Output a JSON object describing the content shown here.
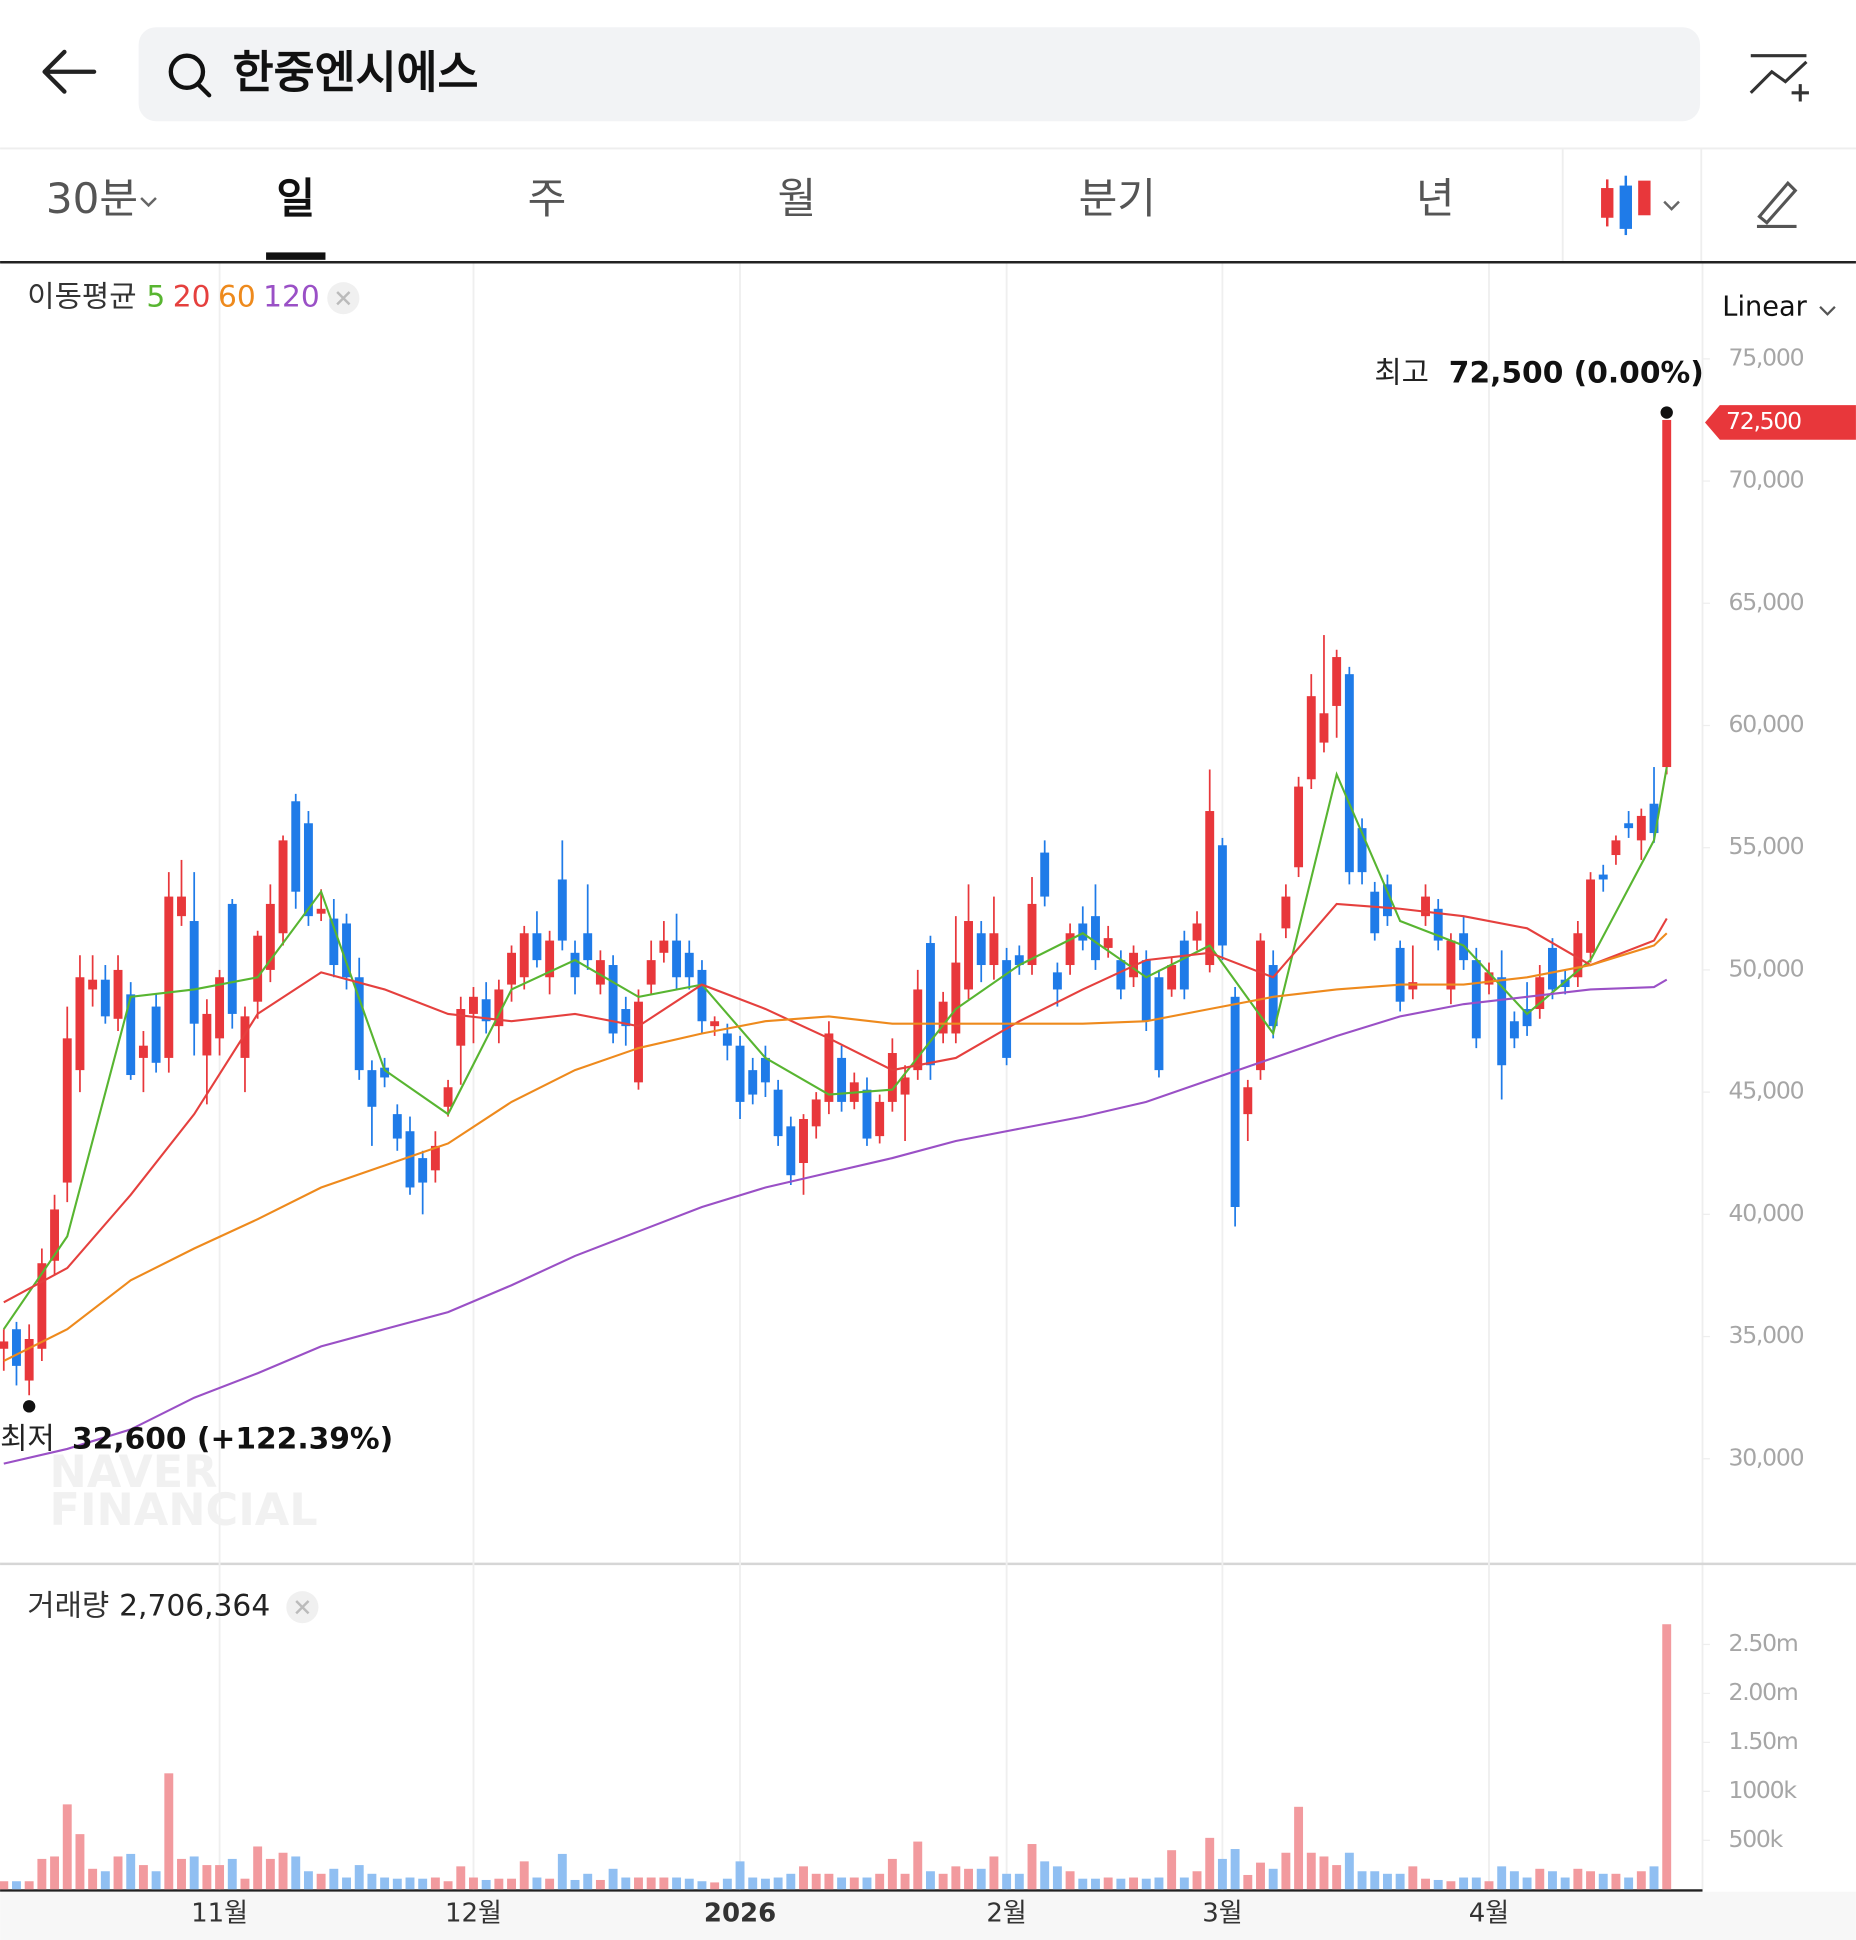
{
  "header": {
    "search_text": "한중엔시에스"
  },
  "tabs": [
    "30분",
    "일",
    "주",
    "월",
    "분기",
    "년"
  ],
  "chart_data": [
    {
      "type": "candlestick",
      "ma_title": "이동평균",
      "scale": "Linear",
      "up_color": "#e8373b",
      "down_color": "#1f7be8",
      "ylim": [
        25750,
        78900
      ],
      "yticks": [
        {
          "value": 30000,
          "label": "30,000"
        },
        {
          "value": 35000,
          "label": "35,000"
        },
        {
          "value": 40000,
          "label": "40,000"
        },
        {
          "value": 45000,
          "label": "45,000"
        },
        {
          "value": 50000,
          "label": "50,000"
        },
        {
          "value": 55000,
          "label": "55,000"
        },
        {
          "value": 60000,
          "label": "60,000"
        },
        {
          "value": 65000,
          "label": "65,000"
        },
        {
          "value": 70000,
          "label": "70,000"
        },
        {
          "value": 75000,
          "label": "75,000"
        }
      ],
      "max_label": "최고",
      "max_text": "72,500 (0.00%)",
      "min_label": "최저",
      "min_text": "32,600 (+122.39%)",
      "price_tag": "72,500",
      "watermark": [
        "NAVER",
        "FINANCIAL"
      ],
      "categories": [
        null,
        null,
        null,
        null,
        null,
        null,
        null,
        null,
        null,
        null,
        null,
        null,
        null,
        null,
        null,
        null,
        null,
        "11월",
        null,
        null,
        null,
        null,
        null,
        null,
        null,
        null,
        null,
        null,
        null,
        null,
        null,
        null,
        null,
        null,
        null,
        null,
        null,
        "12월",
        null,
        null,
        null,
        null,
        null,
        null,
        null,
        null,
        null,
        null,
        null,
        null,
        null,
        null,
        null,
        null,
        null,
        null,
        null,
        null,
        "2026",
        null,
        null,
        null,
        null,
        null,
        null,
        null,
        null,
        null,
        null,
        null,
        null,
        null,
        null,
        null,
        null,
        null,
        null,
        null,
        null,
        "2월",
        null,
        null,
        null,
        null,
        null,
        null,
        null,
        null,
        null,
        null,
        null,
        null,
        null,
        null,
        null,
        null,
        "3월",
        null,
        null,
        null,
        null,
        null,
        null,
        null,
        null,
        null,
        null,
        null,
        null,
        null,
        null,
        null,
        null,
        null,
        null,
        null,
        null,
        "4월",
        null,
        null,
        null,
        null,
        null,
        null,
        null,
        null,
        null,
        null,
        null,
        null,
        null,
        null
      ],
      "open": [
        34500,
        35300,
        33200,
        34500,
        38100,
        41300,
        45900,
        49200,
        49600,
        48000,
        49000,
        46400,
        48500,
        46400,
        52200,
        52000,
        46500,
        47200,
        52700,
        46400,
        48700,
        50000,
        51500,
        56900,
        56000,
        52300,
        52100,
        51900,
        49700,
        45900,
        46000,
        44100,
        43400,
        42300,
        41800,
        44400,
        46900,
        48200,
        48800,
        47700,
        49400,
        49700,
        51500,
        49700,
        53700,
        50700,
        51500,
        49400,
        50200,
        48400,
        45400,
        49400,
        50700,
        51200,
        50700,
        50000,
        47700,
        47400,
        46900,
        45900,
        46400,
        45100,
        43600,
        42100,
        43600,
        44600,
        46400,
        44600,
        45100,
        43200,
        44600,
        44900,
        45900,
        51100,
        47400,
        47400,
        49200,
        51500,
        50200,
        50400,
        50600,
        50200,
        54800,
        49900,
        50200,
        51900,
        52200,
        50900,
        50400,
        49700,
        50400,
        49700,
        49200,
        51200,
        51200,
        50200,
        55100,
        48900,
        44100,
        45900,
        50200,
        51700,
        54200,
        57800,
        59300,
        60800,
        62100,
        55800,
        53200,
        53500,
        50900,
        49200,
        52200,
        52500,
        49200,
        51500,
        50400,
        49400,
        49700,
        47900,
        48400,
        48400,
        50900,
        49600,
        49700,
        50700,
        53900,
        54700,
        56000,
        55300,
        56800,
        58300
      ],
      "high": [
        35300,
        35600,
        35500,
        38600,
        40800,
        48500,
        50600,
        50600,
        50200,
        50600,
        49500,
        47500,
        49000,
        54000,
        54500,
        54000,
        48800,
        50000,
        52900,
        48500,
        51600,
        53500,
        55500,
        57200,
        56500,
        53300,
        52900,
        52300,
        50500,
        46300,
        46400,
        44500,
        44000,
        42600,
        43400,
        45500,
        48900,
        49300,
        49500,
        49600,
        51000,
        51800,
        52400,
        51600,
        55300,
        51200,
        53500,
        50800,
        50600,
        48900,
        49200,
        51200,
        52000,
        52300,
        51200,
        50400,
        48100,
        47800,
        47300,
        46400,
        46900,
        45500,
        44000,
        44100,
        45000,
        47900,
        46900,
        45800,
        45600,
        44900,
        47200,
        46100,
        50000,
        51400,
        49100,
        52200,
        53500,
        52000,
        53000,
        50900,
        51000,
        53800,
        55300,
        50300,
        51900,
        52600,
        53500,
        51800,
        50800,
        51000,
        50800,
        50000,
        50500,
        51600,
        52400,
        58200,
        55400,
        49300,
        45500,
        51500,
        50800,
        53500,
        57900,
        62100,
        63700,
        63100,
        62400,
        56200,
        53600,
        53900,
        51200,
        51000,
        53500,
        52900,
        51500,
        52200,
        50900,
        50300,
        50800,
        48300,
        49500,
        50200,
        51300,
        50000,
        52000,
        54000,
        54300,
        55500,
        56500,
        56600,
        58300,
        72500
      ],
      "low": [
        33600,
        33000,
        32600,
        34000,
        37500,
        40500,
        45000,
        48500,
        47800,
        47500,
        45500,
        45000,
        45800,
        45800,
        51800,
        46500,
        44500,
        46500,
        47600,
        45000,
        48000,
        49500,
        51000,
        52500,
        51800,
        52000,
        49700,
        49200,
        45500,
        42800,
        45200,
        42600,
        40800,
        40000,
        41300,
        44000,
        45300,
        47000,
        47400,
        47000,
        48700,
        49200,
        50100,
        49000,
        50800,
        49000,
        50000,
        49000,
        47000,
        46900,
        45100,
        49000,
        50300,
        49200,
        49200,
        47400,
        47300,
        46300,
        43900,
        44500,
        44800,
        42800,
        41200,
        40800,
        43100,
        44100,
        44200,
        44300,
        42800,
        42900,
        44200,
        43000,
        45500,
        45500,
        47000,
        47000,
        48800,
        49500,
        49600,
        46100,
        49800,
        49800,
        52600,
        48500,
        49800,
        50800,
        50000,
        50500,
        48800,
        49300,
        47500,
        45600,
        48900,
        48800,
        50800,
        49900,
        50400,
        39500,
        43000,
        45500,
        47200,
        51300,
        53800,
        57400,
        58900,
        59500,
        53500,
        53500,
        51200,
        51800,
        48300,
        48800,
        51800,
        50800,
        48600,
        50000,
        46800,
        49000,
        44700,
        46800,
        47300,
        48000,
        48800,
        49000,
        49300,
        50300,
        53200,
        54300,
        55400,
        54500,
        55200,
        58000
      ],
      "close": [
        34800,
        33800,
        34900,
        38000,
        40200,
        47200,
        49700,
        49600,
        48100,
        50000,
        45700,
        46900,
        46200,
        53000,
        53000,
        47800,
        48200,
        49700,
        48200,
        48100,
        51400,
        52700,
        55300,
        53200,
        52200,
        52500,
        50200,
        49700,
        45900,
        44400,
        45600,
        43100,
        41100,
        41300,
        42800,
        45200,
        48400,
        48900,
        47900,
        49200,
        50700,
        51500,
        50400,
        51200,
        51200,
        49700,
        50400,
        50400,
        47400,
        47700,
        48700,
        50400,
        51200,
        49700,
        49700,
        47900,
        47900,
        46900,
        44600,
        44900,
        45400,
        43200,
        41600,
        43900,
        44700,
        47400,
        44600,
        45400,
        43100,
        44600,
        46600,
        45600,
        49200,
        46100,
        48700,
        50300,
        52000,
        50200,
        51500,
        46400,
        50200,
        52700,
        53000,
        49200,
        51500,
        51200,
        50400,
        51300,
        49200,
        50700,
        47900,
        45900,
        50200,
        49200,
        51900,
        56500,
        51000,
        40300,
        45200,
        51200,
        47700,
        53000,
        57500,
        61200,
        60500,
        62800,
        54000,
        54000,
        51500,
        52200,
        48700,
        49500,
        53000,
        51200,
        51200,
        50400,
        47200,
        49900,
        46100,
        47200,
        47700,
        49700,
        49200,
        49300,
        51500,
        53700,
        53700,
        55300,
        55800,
        56300,
        55600,
        72500
      ],
      "moving_averages": [
        {
          "name": "5",
          "color": "#58b531",
          "x": [
            0,
            5,
            10,
            15,
            20,
            25,
            30,
            35,
            40,
            45,
            50,
            55,
            60,
            65,
            70,
            75,
            80,
            85,
            90,
            95,
            100,
            105,
            110,
            115,
            120,
            125,
            130,
            131
          ],
          "values": [
            35300,
            39100,
            48900,
            49200,
            49700,
            53200,
            45900,
            44100,
            49200,
            50400,
            48900,
            49400,
            46400,
            44900,
            45100,
            48400,
            50200,
            51500,
            49700,
            51000,
            47400,
            58000,
            52000,
            51000,
            48200,
            50400,
            55300,
            58300
          ]
        },
        {
          "name": "20",
          "color": "#e5403e",
          "x": [
            0,
            5,
            10,
            15,
            20,
            25,
            30,
            35,
            40,
            45,
            50,
            55,
            60,
            65,
            70,
            75,
            80,
            85,
            90,
            95,
            100,
            105,
            110,
            115,
            120,
            125,
            130,
            131
          ],
          "values": [
            36400,
            37800,
            40800,
            44100,
            48200,
            49900,
            49200,
            48200,
            47900,
            48200,
            47700,
            49400,
            48400,
            47200,
            45900,
            46400,
            47900,
            49200,
            50400,
            50700,
            49700,
            52700,
            52500,
            52200,
            51700,
            50200,
            51200,
            52100
          ]
        },
        {
          "name": "60",
          "color": "#ee8a1d",
          "x": [
            0,
            5,
            10,
            15,
            20,
            25,
            30,
            35,
            40,
            45,
            50,
            55,
            60,
            65,
            70,
            75,
            80,
            85,
            90,
            95,
            100,
            105,
            110,
            115,
            120,
            125,
            130,
            131
          ],
          "values": [
            34000,
            35300,
            37300,
            38600,
            39800,
            41100,
            42000,
            42900,
            44600,
            45900,
            46800,
            47400,
            47900,
            48100,
            47800,
            47800,
            47800,
            47800,
            47900,
            48400,
            48900,
            49200,
            49400,
            49400,
            49700,
            50200,
            51000,
            51500
          ]
        },
        {
          "name": "120",
          "color": "#9a50c6",
          "x": [
            0,
            5,
            10,
            15,
            20,
            25,
            30,
            35,
            40,
            45,
            50,
            55,
            60,
            65,
            70,
            75,
            80,
            85,
            90,
            95,
            100,
            105,
            110,
            115,
            120,
            125,
            130,
            131
          ],
          "values": [
            29800,
            30400,
            31200,
            32500,
            33500,
            34600,
            35300,
            36000,
            37100,
            38300,
            39300,
            40300,
            41100,
            41700,
            42300,
            43000,
            43500,
            44000,
            44600,
            45500,
            46400,
            47300,
            48100,
            48600,
            48900,
            49200,
            49300,
            49600
          ]
        }
      ]
    },
    {
      "type": "bar",
      "title": "거래량",
      "value_text": "2,706,364",
      "up_color": "#f29a9e",
      "down_color": "#90bff2",
      "ylim": [
        0,
        3310000
      ],
      "yticks": [
        {
          "value": 500000,
          "label": "500k"
        },
        {
          "value": 1000000,
          "label": "1000k"
        },
        {
          "value": 1500000,
          "label": "1.50m"
        },
        {
          "value": 2000000,
          "label": "2.00m"
        },
        {
          "value": 2500000,
          "label": "2.50m"
        }
      ],
      "values": [
        82000,
        82000,
        82000,
        310000,
        335000,
        867000,
        563000,
        209000,
        184000,
        335000,
        361000,
        247000,
        184000,
        1184000,
        310000,
        335000,
        247000,
        247000,
        310000,
        108000,
        437000,
        310000,
        373000,
        335000,
        184000,
        158000,
        209000,
        120000,
        247000,
        158000,
        120000,
        108000,
        120000,
        108000,
        120000,
        82000,
        234000,
        120000,
        95000,
        108000,
        108000,
        285000,
        120000,
        108000,
        361000,
        95000,
        158000,
        95000,
        209000,
        120000,
        120000,
        120000,
        120000,
        120000,
        108000,
        82000,
        70000,
        108000,
        285000,
        120000,
        108000,
        120000,
        158000,
        234000,
        158000,
        158000,
        120000,
        120000,
        120000,
        158000,
        310000,
        158000,
        487000,
        184000,
        158000,
        234000,
        209000,
        209000,
        335000,
        158000,
        158000,
        462000,
        285000,
        234000,
        184000,
        108000,
        108000,
        120000,
        108000,
        120000,
        108000,
        120000,
        399000,
        120000,
        184000,
        525000,
        310000,
        411000,
        146000,
        272000,
        209000,
        373000,
        842000,
        373000,
        335000,
        247000,
        373000,
        184000,
        184000,
        158000,
        158000,
        234000,
        108000,
        95000,
        82000,
        120000,
        120000,
        82000,
        234000,
        184000,
        120000,
        209000,
        184000,
        120000,
        209000,
        184000,
        158000,
        158000,
        120000,
        184000,
        234000,
        2706364
      ]
    }
  ]
}
